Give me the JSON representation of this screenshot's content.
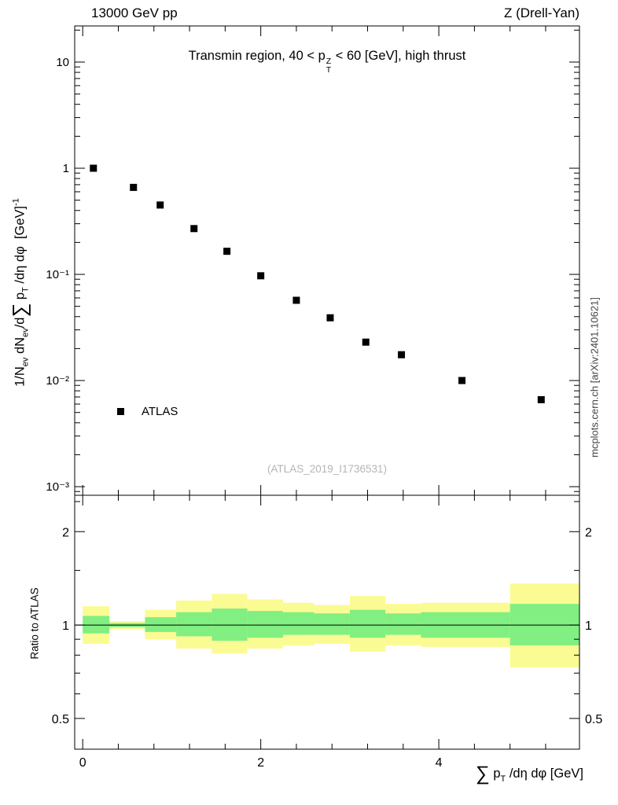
{
  "header": {
    "left": "13000 GeV pp",
    "right": "Z (Drell-Yan)"
  },
  "panel_title": {
    "pre": "Transmin region, 40 < p",
    "sup": "Z",
    "sub": "T",
    "post": " < 60 [GeV], high thrust"
  },
  "legend": {
    "label": "ATLAS"
  },
  "watermark": "(ATLAS_2019_I1736531)",
  "side_caption": "mcplots.cern.ch [arXiv:2401.10621]",
  "y_axis_label": {
    "n1": "1/N",
    "s1": "ev",
    "n2": " dN",
    "s2": "ev",
    "n3": "/d",
    "sigma": "∑",
    "n4": " p",
    "s4": "T",
    "n5": " /dη dφ  [GeV]",
    "sup": "-1"
  },
  "x_axis_label": {
    "sigma": "∑",
    "p": " p",
    "sub": "T",
    "rest": " /dη dφ [GeV]"
  },
  "chart_data": [
    {
      "type": "scatter",
      "title": "Transmin region, 40 < p_T^Z < 60 [GeV], high thrust",
      "xlabel": "∑ p_T /dη dφ [GeV]",
      "ylabel": "1/N_ev dN_ev/d∑ p_T /dη dφ [GeV]^-1",
      "yscale": "log",
      "xlim": [
        -0.09,
        5.58
      ],
      "ylim": [
        0.00083,
        21.9
      ],
      "xticks": [
        {
          "v": 0,
          "label": "0"
        },
        {
          "v": 2,
          "label": "2"
        },
        {
          "v": 4,
          "label": "4"
        }
      ],
      "yticks": [
        {
          "v": 10,
          "label": "10"
        },
        {
          "v": 1,
          "label": "1"
        },
        {
          "v": 0.1,
          "label": "10⁻¹"
        },
        {
          "v": 0.01,
          "label": "10⁻²"
        },
        {
          "v": 0.001,
          "label": "10⁻³"
        }
      ],
      "series": [
        {
          "name": "ATLAS",
          "marker": "square",
          "color": "#000000",
          "x": [
            0.12,
            0.57,
            0.87,
            1.25,
            1.62,
            2.0,
            2.4,
            2.78,
            3.18,
            3.58,
            4.26,
            5.15
          ],
          "y": [
            1.0,
            0.66,
            0.45,
            0.27,
            0.165,
            0.097,
            0.057,
            0.039,
            0.023,
            0.0175,
            0.01,
            0.0066
          ]
        }
      ]
    },
    {
      "type": "area",
      "name": "uncertainty-ratio",
      "ylabel": "Ratio to ATLAS",
      "yscale": "log",
      "ylim": [
        0.398,
        2.62
      ],
      "yticks": [
        {
          "v": 2,
          "label": "2"
        },
        {
          "v": 1,
          "label": "1"
        },
        {
          "v": 0.5,
          "label": "0.5"
        }
      ],
      "yticks_minor": [
        0.6,
        0.7,
        0.8,
        0.9,
        1.5,
        2.5
      ],
      "reference_line": 1.0,
      "colors": {
        "outer_band": "#fbfb94",
        "inner_band": "#81ef81"
      },
      "bands": [
        {
          "x0": 0.0,
          "x1": 0.3,
          "yellow": [
            0.87,
            1.15
          ],
          "green": [
            0.94,
            1.07
          ]
        },
        {
          "x0": 0.3,
          "x1": 0.7,
          "yellow": [
            0.97,
            1.03
          ],
          "green": [
            0.985,
            1.015
          ]
        },
        {
          "x0": 0.7,
          "x1": 1.05,
          "yellow": [
            0.9,
            1.12
          ],
          "green": [
            0.95,
            1.06
          ]
        },
        {
          "x0": 1.05,
          "x1": 1.45,
          "yellow": [
            0.84,
            1.2
          ],
          "green": [
            0.92,
            1.1
          ]
        },
        {
          "x0": 1.45,
          "x1": 1.85,
          "yellow": [
            0.81,
            1.26
          ],
          "green": [
            0.89,
            1.13
          ]
        },
        {
          "x0": 1.85,
          "x1": 2.25,
          "yellow": [
            0.84,
            1.21
          ],
          "green": [
            0.91,
            1.11
          ]
        },
        {
          "x0": 2.25,
          "x1": 2.6,
          "yellow": [
            0.86,
            1.18
          ],
          "green": [
            0.93,
            1.1
          ]
        },
        {
          "x0": 2.6,
          "x1": 3.0,
          "yellow": [
            0.87,
            1.16
          ],
          "green": [
            0.93,
            1.09
          ]
        },
        {
          "x0": 3.0,
          "x1": 3.4,
          "yellow": [
            0.82,
            1.24
          ],
          "green": [
            0.91,
            1.12
          ]
        },
        {
          "x0": 3.4,
          "x1": 3.8,
          "yellow": [
            0.86,
            1.17
          ],
          "green": [
            0.93,
            1.09
          ]
        },
        {
          "x0": 3.8,
          "x1": 4.8,
          "yellow": [
            0.85,
            1.18
          ],
          "green": [
            0.91,
            1.1
          ]
        },
        {
          "x0": 4.8,
          "x1": 5.58,
          "yellow": [
            0.73,
            1.36
          ],
          "green": [
            0.86,
            1.17
          ]
        }
      ]
    }
  ]
}
